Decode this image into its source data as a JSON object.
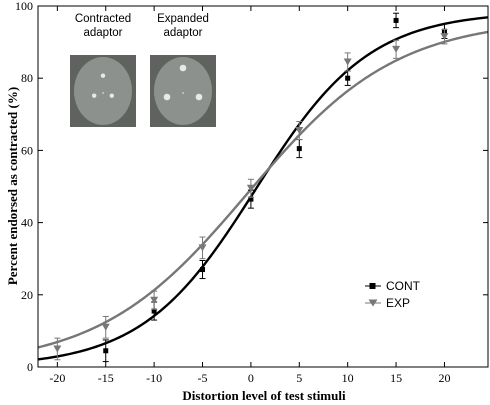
{
  "chart_data": {
    "type": "scatter",
    "xlabel": "Distortion level of test stimuli",
    "ylabel": "Percent endorsed as contracted (%)",
    "xlim": [
      -22,
      24.5
    ],
    "ylim": [
      0,
      100
    ],
    "x_ticks": [
      -20,
      -15,
      -10,
      -5,
      0,
      5,
      10,
      15,
      20
    ],
    "y_ticks": [
      0,
      20,
      40,
      60,
      80,
      100
    ],
    "grid": false,
    "legend_position": "lower-right",
    "series": [
      {
        "name": "CONT",
        "marker": "square",
        "color": "#000000",
        "x": [
          -15,
          -10,
          -5,
          0,
          5,
          10,
          15,
          20
        ],
        "y": [
          4.5,
          15.5,
          27,
          46.5,
          60.5,
          80,
          96,
          93
        ],
        "err": [
          3,
          2.5,
          2.5,
          2.5,
          2.5,
          2,
          2,
          2
        ],
        "fit": {
          "slope": 0.17,
          "midpoint": 0.5,
          "max": 98.5
        }
      },
      {
        "name": "EXP",
        "marker": "triangle-down",
        "color": "#777777",
        "x": [
          -20,
          -15,
          -10,
          -5,
          0,
          5,
          10,
          15,
          20
        ],
        "y": [
          5,
          11,
          18.5,
          33,
          49.5,
          65.5,
          84.5,
          88,
          91.5
        ],
        "err": [
          3,
          3,
          2.5,
          3,
          2.5,
          2.5,
          2.5,
          2.5,
          2
        ],
        "fit": {
          "slope": 0.13,
          "midpoint": -0.3,
          "max": 96.5
        }
      }
    ],
    "insets": [
      {
        "label_line1": "Contracted",
        "label_line2": "adaptor",
        "dot_spread": "small"
      },
      {
        "label_line1": "Expanded",
        "label_line2": "adaptor",
        "dot_spread": "large"
      }
    ]
  }
}
